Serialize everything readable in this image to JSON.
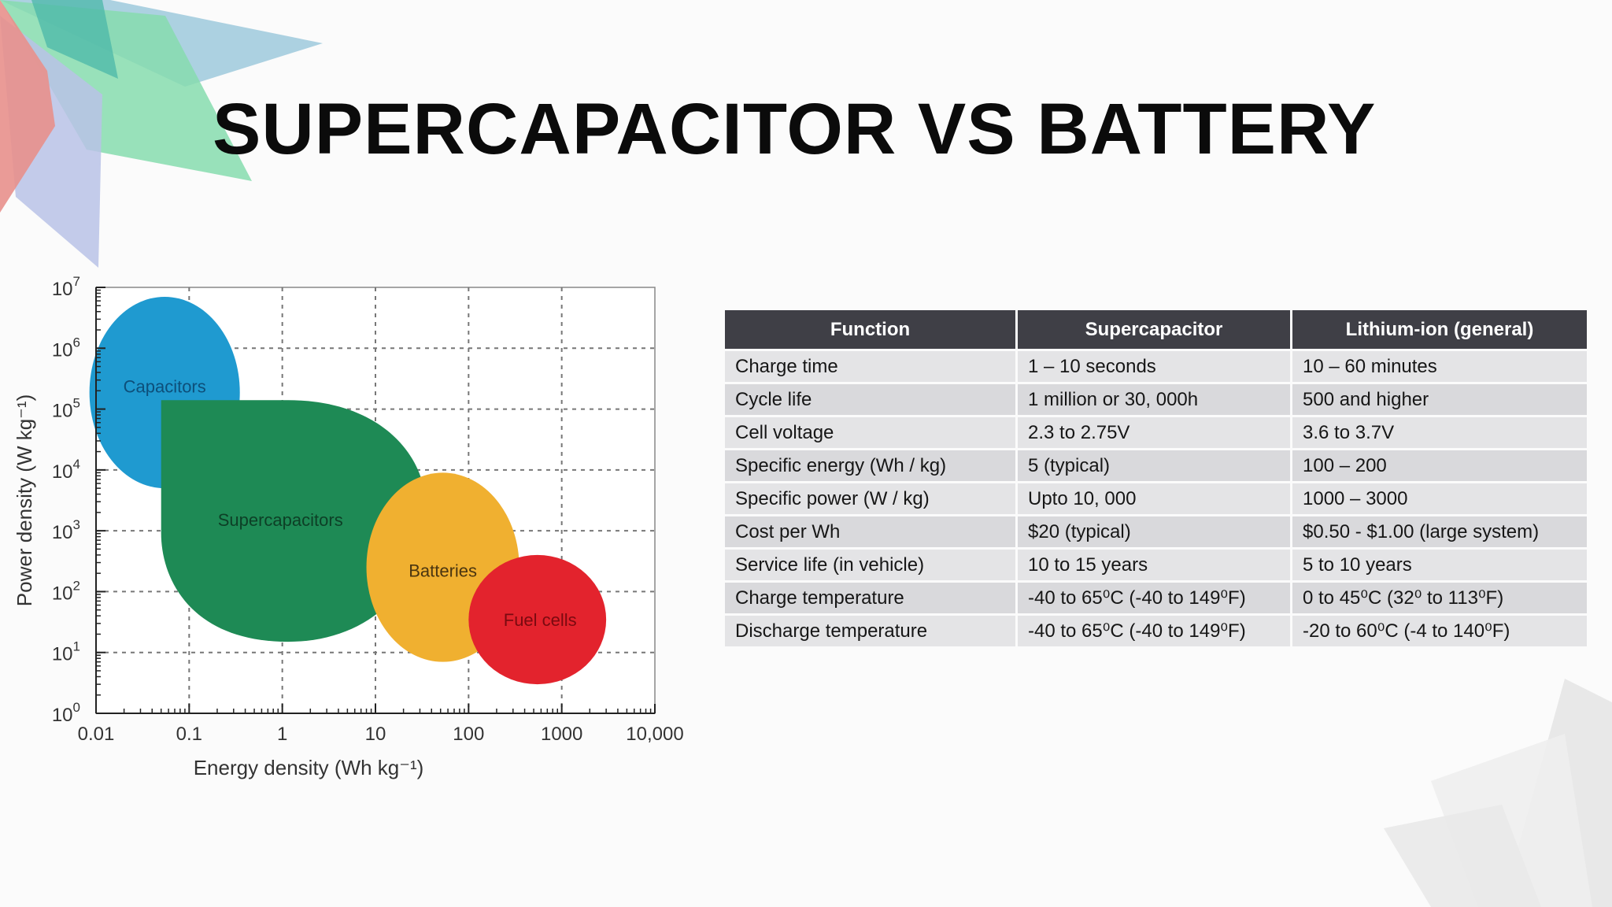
{
  "slide": {
    "title": "SUPERCAPACITOR VS BATTERY"
  },
  "chart_data": {
    "type": "area",
    "xlabel": "Energy density (Wh kg⁻¹)",
    "ylabel": "Power density (W kg⁻¹)",
    "x_scale": "log",
    "y_scale": "log",
    "xlim": [
      0.01,
      10000
    ],
    "ylim": [
      1,
      10000000
    ],
    "x_ticks": [
      "0.01",
      "0.1",
      "1",
      "10",
      "100",
      "1000",
      "10,000"
    ],
    "y_ticks": [
      {
        "base": "10",
        "exp": "0"
      },
      {
        "base": "10",
        "exp": "1"
      },
      {
        "base": "10",
        "exp": "2"
      },
      {
        "base": "10",
        "exp": "3"
      },
      {
        "base": "10",
        "exp": "4"
      },
      {
        "base": "10",
        "exp": "5"
      },
      {
        "base": "10",
        "exp": "6"
      },
      {
        "base": "10",
        "exp": "7"
      }
    ],
    "grid": true,
    "regions": [
      {
        "name": "Capacitors",
        "color": "#1f9ad0",
        "label_color": "#0d4f7a",
        "energy_range": [
          0.0085,
          0.35
        ],
        "power_range": [
          5000,
          7000000
        ]
      },
      {
        "name": "Supercapacitors",
        "color": "#1e8a55",
        "label_color": "#0d3f26",
        "energy_range": [
          0.05,
          35
        ],
        "power_range": [
          15,
          140000
        ]
      },
      {
        "name": "Batteries",
        "color": "#f0b030",
        "label_color": "#4a3510",
        "energy_range": [
          8,
          350
        ],
        "power_range": [
          7,
          9000
        ]
      },
      {
        "name": "Fuel cells",
        "color": "#e3232d",
        "label_color": "#7a0a10",
        "energy_range": [
          100,
          3000
        ],
        "power_range": [
          3,
          400
        ]
      }
    ]
  },
  "table": {
    "headers": [
      "Function",
      "Supercapacitor",
      "Lithium-ion (general)"
    ],
    "rows": [
      [
        "Charge time",
        "1 – 10 seconds",
        "10 – 60 minutes"
      ],
      [
        "Cycle life",
        "1 million or 30, 000h",
        "500 and higher"
      ],
      [
        "Cell voltage",
        "2.3 to 2.75V",
        "3.6 to 3.7V"
      ],
      [
        "Specific energy (Wh / kg)",
        "5 (typical)",
        "100 – 200"
      ],
      [
        "Specific power (W / kg)",
        "Upto  10, 000",
        "1000 – 3000"
      ],
      [
        "Cost per Wh",
        "$20 (typical)",
        "$0.50 - $1.00 (large system)"
      ],
      [
        "Service life (in vehicle)",
        "10 to 15 years",
        "5 to 10 years"
      ],
      [
        "Charge temperature",
        "-40 to 65⁰C (-40 to 149⁰F)",
        "0 to 45⁰C (32⁰ to 113⁰F)"
      ],
      [
        "Discharge temperature",
        "-40 to 65⁰C (-40 to 149⁰F)",
        "-20 to 60⁰C (-4 to 140⁰F)"
      ]
    ]
  },
  "colors": {
    "header_bg": "#3f3f46",
    "row_bg": "#e4e4e6",
    "deco_red": "#e8908c",
    "deco_teal": "#4bb7a8",
    "deco_green": "#86dcae",
    "deco_blue": "#9ec9dc"
  }
}
